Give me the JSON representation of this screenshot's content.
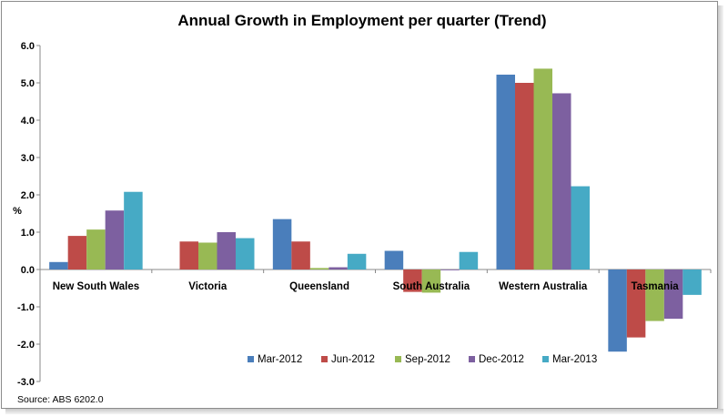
{
  "chart_data": {
    "type": "bar",
    "title": "Annual Growth in Employment per quarter (Trend)",
    "ylabel": "%",
    "xlabel": "",
    "ylim": [
      -3.0,
      6.0
    ],
    "yticks": [
      "6.0",
      "5.0",
      "4.0",
      "3.0",
      "2.0",
      "1.0",
      "0.0",
      "-1.0",
      "-2.0",
      "-3.0"
    ],
    "grid": false,
    "legend_position": "bottom-center",
    "categories": [
      "New South Wales",
      "Victoria",
      "Queensland",
      "South Australia",
      "Western Australia",
      "Tasmania"
    ],
    "series": [
      {
        "name": "Mar-2012",
        "color": "#4a7ebb",
        "values": [
          0.2,
          0.0,
          1.35,
          0.5,
          5.22,
          -2.2
        ]
      },
      {
        "name": "Jun-2012",
        "color": "#be4b48",
        "values": [
          0.9,
          0.75,
          0.75,
          -0.6,
          5.0,
          -1.82
        ]
      },
      {
        "name": "Sep-2012",
        "color": "#98b954",
        "values": [
          1.07,
          0.72,
          0.04,
          -0.62,
          5.38,
          -1.38
        ]
      },
      {
        "name": "Dec-2012",
        "color": "#7d60a0",
        "values": [
          1.58,
          1.0,
          0.06,
          -0.02,
          4.72,
          -1.32
        ]
      },
      {
        "name": "Mar-2013",
        "color": "#46aac5",
        "values": [
          2.08,
          0.84,
          0.42,
          0.47,
          2.23,
          -0.68
        ]
      }
    ]
  },
  "source_note": "Source: ABS 6202.0"
}
